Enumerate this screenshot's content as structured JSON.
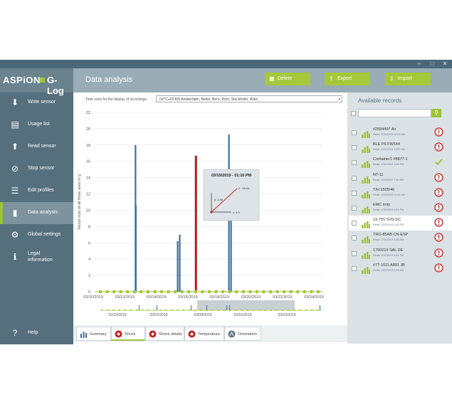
{
  "app": {
    "logo_left": "ASPiON",
    "logo_right": "G-Log"
  },
  "window": {
    "controls": [
      "–",
      "□",
      "✕"
    ]
  },
  "nav": [
    {
      "label": "Write sensor",
      "icon": "download-icon"
    },
    {
      "label": "Usage list",
      "icon": "document-icon"
    },
    {
      "label": "Read sensor",
      "icon": "upload-icon"
    },
    {
      "label": "Stop sensor",
      "icon": "stop-icon"
    },
    {
      "label": "Edit profiles",
      "icon": "profiles-icon"
    },
    {
      "label": "Data analysis",
      "icon": "bar-chart-icon",
      "active": true
    },
    {
      "label": "Global settings",
      "icon": "gear-icon"
    },
    {
      "label": "Legal\ninformation",
      "icon": "info-icon"
    },
    {
      "label": "Help",
      "icon": "help-icon"
    }
  ],
  "header": {
    "title": "Data analysis",
    "buttons": [
      {
        "label": "Delete",
        "icon": "delete-icon"
      },
      {
        "label": "Export",
        "icon": "export-icon"
      },
      {
        "label": "Import",
        "icon": "import-icon"
      }
    ]
  },
  "timezone": {
    "label": "Time zone for the display of recordings",
    "value": "(UTC+01:00) Amsterdam, Berlin, Bern, Rom, Stockholm, Wien"
  },
  "chart_data": {
    "type": "bar",
    "ylabel": "Vector sum of all three axes in g",
    "ylim": [
      0,
      22
    ],
    "yticks": [
      0,
      2,
      4,
      6,
      8,
      10,
      12,
      14,
      16,
      18,
      20,
      22
    ],
    "xlim": [
      0,
      31
    ],
    "xtick_labels": [
      "03/10/2019",
      "03/12/2019",
      "03/14/2019",
      "03/16/2019",
      "03/18/2019",
      "03/20/2019",
      "03/22/2019",
      "03/24/2019"
    ],
    "xtick_positions": [
      4,
      8,
      12,
      16,
      20,
      24,
      28,
      32
    ],
    "bars": [
      {
        "x": 5.0,
        "value": 18.0,
        "color": "#3f6fa0"
      },
      {
        "x": 5.05,
        "value": 10.6,
        "color": "#3f6fa0"
      },
      {
        "x": 11.0,
        "value": 6.2,
        "color": "#3f6fa0"
      },
      {
        "x": 11.3,
        "value": 7.0,
        "color": "#3f6fa0"
      },
      {
        "x": 13.6,
        "value": 16.7,
        "color": "#b21c1c"
      },
      {
        "x": 18.3,
        "value": 19.3,
        "color": "#3f6fa0"
      },
      {
        "x": 18.6,
        "value": 9.2,
        "color": "#3f6fa0"
      }
    ],
    "dots": [
      0,
      1,
      2,
      3,
      4,
      5,
      6,
      7,
      8,
      9,
      10,
      11,
      12,
      13,
      14,
      15,
      16,
      17,
      18,
      19,
      20,
      21,
      22,
      23,
      24,
      25,
      26,
      27,
      28,
      29,
      30,
      31,
      32
    ],
    "overview": {
      "tick_labels": [
        "02/23/2019",
        "03/02/2019",
        "03/09/2019",
        "03/16/2019",
        "03/23/2019"
      ]
    },
    "tooltip": {
      "title": "03/15/2019 - 01:16 PM",
      "z": "z: -15.94",
      "y": "y: 1.54",
      "x": "x: 4.0"
    }
  },
  "tabs": [
    {
      "label": "Summary",
      "icon": "summary-icon"
    },
    {
      "label": "Shock",
      "icon": "shock-icon",
      "active": true
    },
    {
      "label": "Shock details",
      "icon": "shock-details-icon"
    },
    {
      "label": "Temperature",
      "icon": "thermometer-icon"
    },
    {
      "label": "Orientation",
      "icon": "orientation-icon"
    }
  ],
  "records_panel": {
    "title": "Available records",
    "search_placeholder": "",
    "records": [
      {
        "name": "#2584497 Air",
        "date": "Read: 4/25/2019 10:53 AM",
        "status": "alert"
      },
      {
        "name": "BLE P6 FW544",
        "date": "Read: 4/29/2019 11:57 AM",
        "status": "alert"
      },
      {
        "name": "Container1 #8877-1",
        "date": "Read: 4/30/2019 1:08 PM",
        "status": "ok"
      },
      {
        "name": "NT-11",
        "date": "Read: 4/29/2019 7:30 AM",
        "status": "alert"
      },
      {
        "name": "T/H 1505/40",
        "date": "Read: 4/18/2019 11:41 AM",
        "status": "alert"
      },
      {
        "name": "EMC Imty",
        "date": "Read: 4/30/2019 2:23 PM",
        "status": "alert"
      },
      {
        "name": "19-755 SVN DC",
        "date": "Read: 3/29/2019 1:08 PM",
        "status": "alert",
        "selected": true
      },
      {
        "name": "TRO-85AB CN-ESP",
        "date": "Read: 1/16/2019 4:36 AM",
        "status": "alert"
      },
      {
        "name": "1750219 SAL DE",
        "date": "Read: 1/12/2019 3:04 PM",
        "status": "alert"
      },
      {
        "name": "#77-1511 A891 JB",
        "date": "Read: 4/29/2019 5:08 AM",
        "status": "alert"
      }
    ]
  },
  "colors": {
    "accent": "#9cc43a",
    "sidebar": "#566f7c",
    "header": "#9aadb7",
    "alert": "#c8201f",
    "bar": "#3f6fa0"
  }
}
